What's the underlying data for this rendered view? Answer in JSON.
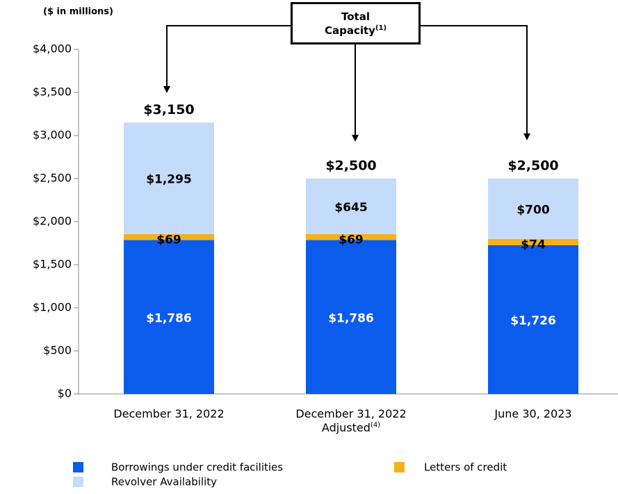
{
  "chart_data": {
    "type": "stacked_bar",
    "axis_label": "($ in millions)",
    "annotation": "Total Capacity",
    "annotation_note": "(1)",
    "categories": [
      "December 31, 2022",
      "December 31, 2022 Adjusted",
      "June 30, 2023"
    ],
    "category_notes": [
      null,
      "(4)",
      null
    ],
    "series": [
      {
        "name": "Borrowings under credit facilities",
        "color": "#0b5ced",
        "values": [
          1786,
          1786,
          1726
        ],
        "value_labels": [
          "$1,786",
          "$1,786",
          "$1,726"
        ]
      },
      {
        "name": "Letters of credit",
        "color": "#f5b11b",
        "values": [
          69,
          69,
          74
        ],
        "value_labels": [
          "$69",
          "$69",
          "$74"
        ]
      },
      {
        "name": "Revolver Availability",
        "color": "#c4dbfa",
        "values": [
          1295,
          645,
          700
        ],
        "value_labels": [
          "$1,295",
          "$645",
          "$700"
        ]
      }
    ],
    "totals": [
      3150,
      2500,
      2500
    ],
    "total_labels": [
      "$3,150",
      "$2,500",
      "$2,500"
    ],
    "ylim": [
      0,
      4000
    ],
    "yticks": [
      {
        "value": 0,
        "label": "$0"
      },
      {
        "value": 500,
        "label": "$500"
      },
      {
        "value": 1000,
        "label": "$1,000"
      },
      {
        "value": 1500,
        "label": "$1,500"
      },
      {
        "value": 2000,
        "label": "$2,000"
      },
      {
        "value": 2500,
        "label": "$2,500"
      },
      {
        "value": 3000,
        "label": "$3,000"
      },
      {
        "value": 3500,
        "label": "$3,500"
      },
      {
        "value": 4000,
        "label": "$4,000"
      }
    ]
  }
}
